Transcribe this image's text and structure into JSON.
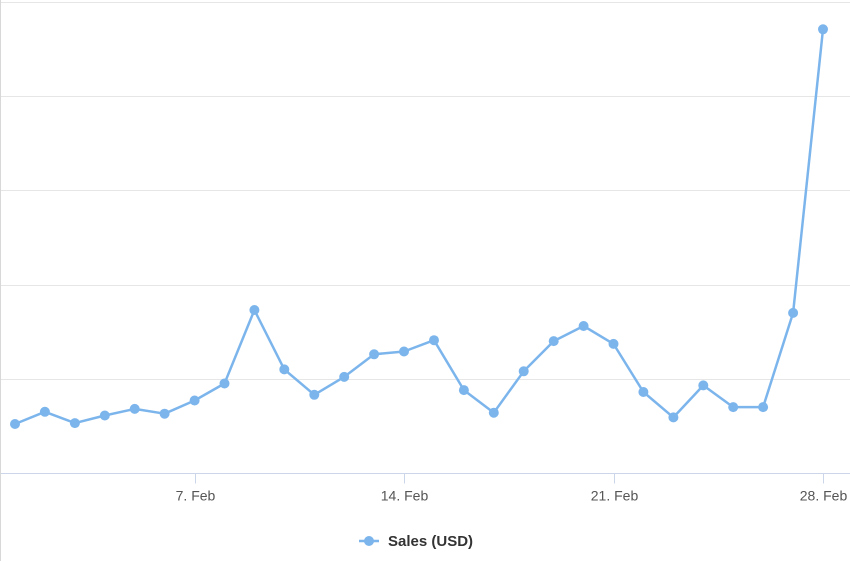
{
  "chart_data": {
    "type": "line",
    "x": [
      "2021-02-01",
      "2021-02-02",
      "2021-02-03",
      "2021-02-04",
      "2021-02-05",
      "2021-02-06",
      "2021-02-07",
      "2021-02-08",
      "2021-02-09",
      "2021-02-10",
      "2021-02-11",
      "2021-02-12",
      "2021-02-13",
      "2021-02-14",
      "2021-02-15",
      "2021-02-16",
      "2021-02-17",
      "2021-02-18",
      "2021-02-19",
      "2021-02-20",
      "2021-02-21",
      "2021-02-22",
      "2021-02-23",
      "2021-02-24",
      "2021-02-25",
      "2021-02-26",
      "2021-02-27",
      "2021-02-28"
    ],
    "x_tick_labels": [
      {
        "date": "2021-02-07",
        "label": "7. Feb"
      },
      {
        "date": "2021-02-14",
        "label": "14. Feb"
      },
      {
        "date": "2021-02-21",
        "label": "21. Feb"
      },
      {
        "date": "2021-02-28",
        "label": "28. Feb"
      }
    ],
    "series": [
      {
        "name": "Sales (USD)",
        "color": "#7cb5ec",
        "values": [
          0.52,
          0.65,
          0.53,
          0.61,
          0.68,
          0.63,
          0.77,
          0.95,
          1.73,
          1.1,
          0.83,
          1.02,
          1.26,
          1.29,
          1.41,
          0.88,
          0.64,
          1.08,
          1.4,
          1.56,
          1.37,
          0.86,
          0.59,
          0.93,
          0.7,
          0.7,
          1.7,
          4.71
        ]
      }
    ],
    "ylim": [
      0,
      5
    ],
    "ytick_values": [
      0,
      1,
      2,
      3,
      4,
      5
    ],
    "ytick_labels_shown": false,
    "grid": true,
    "gridline_color": "#e6e6e6",
    "axis_line_color": "#ccd6eb",
    "title": "",
    "xlabel": "",
    "ylabel": "",
    "legend_position": "bottom-center"
  }
}
